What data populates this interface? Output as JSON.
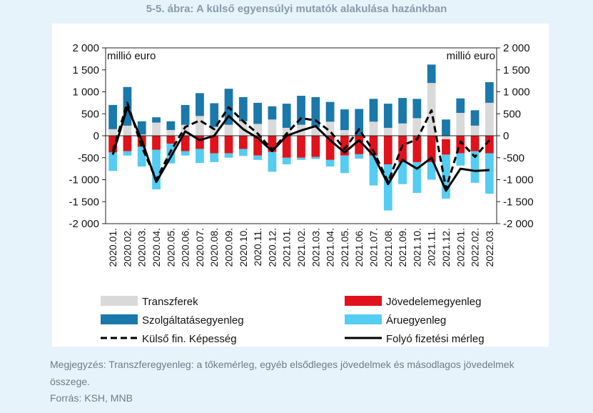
{
  "figure_title": "5-5. ábra: A külső egyensúlyi mutatók alakulása hazánkban",
  "note": "Megjegyzés: Transzferegyenleg: a tőkemérleg, egyéb elsődleges jövedelmek és másodlagos jövedelmek összege.",
  "source": "Forrás: KSH, MNB",
  "chart_data": {
    "type": "bar",
    "stacked": true,
    "title": "",
    "unit_left": "millió euro",
    "unit_right": "millió euro",
    "ylim": [
      -2000,
      2000
    ],
    "yticks": [
      2000,
      1500,
      1000,
      500,
      0,
      -500,
      -1000,
      -1500,
      -2000
    ],
    "ytick_labels": [
      "2 000",
      "1 500",
      "1 000",
      "500",
      "0",
      "-500",
      "-1 000",
      "-1 500",
      "-2 000"
    ],
    "grid": false,
    "legend_position": "bottom",
    "categories": [
      "2020.01.",
      "2020.02.",
      "2020.03.",
      "2020.04.",
      "2020.05.",
      "2020.06.",
      "2020.07.",
      "2020.08.",
      "2020.09.",
      "2020.10.",
      "2020.11.",
      "2020.12.",
      "2021.01.",
      "2021.02.",
      "2021.03.",
      "2021.04.",
      "2021.05.",
      "2021.06.",
      "2021.07.",
      "2021.08.",
      "2021.09.",
      "2021.10.",
      "2021.11.",
      "2021.12.",
      "2022.01.",
      "2022.02.",
      "2022.03."
    ],
    "series": [
      {
        "name": "Transzferek",
        "kind": "bar",
        "color": "#d9d9d9",
        "values": [
          150,
          230,
          30,
          300,
          130,
          250,
          450,
          200,
          250,
          330,
          270,
          370,
          180,
          250,
          190,
          320,
          130,
          0,
          320,
          180,
          280,
          400,
          1200,
          -80,
          520,
          230,
          750
        ]
      },
      {
        "name": "Jövedelemegyenleg",
        "kind": "bar",
        "color": "#e0121b",
        "values": [
          -380,
          -350,
          -250,
          -320,
          -180,
          -350,
          -300,
          -400,
          -400,
          -300,
          -450,
          -370,
          -500,
          -500,
          -480,
          -550,
          -450,
          -420,
          -450,
          -650,
          -600,
          -600,
          -600,
          -350,
          -400,
          -350,
          -400
        ]
      },
      {
        "name": "Szolgáltatásegyenleg",
        "kind": "bar",
        "color": "#1a78aa",
        "values": [
          550,
          880,
          300,
          120,
          200,
          450,
          520,
          540,
          820,
          550,
          480,
          300,
          550,
          660,
          690,
          450,
          470,
          610,
          520,
          550,
          580,
          440,
          420,
          370,
          330,
          350,
          470
        ]
      },
      {
        "name": "Áruegyenleg",
        "kind": "bar",
        "color": "#55ccf2",
        "values": [
          -420,
          -100,
          -450,
          -900,
          -450,
          -100,
          -320,
          -200,
          -100,
          -160,
          -100,
          -450,
          -150,
          -50,
          -50,
          -150,
          -400,
          -100,
          -680,
          -1050,
          -500,
          -700,
          -400,
          -1000,
          -280,
          -720,
          -920
        ]
      },
      {
        "name": "Külső fin. Képesség",
        "kind": "line",
        "dash": true,
        "color": "#000000",
        "values": [
          -350,
          750,
          -250,
          -1000,
          -350,
          200,
          350,
          150,
          650,
          330,
          50,
          -320,
          50,
          400,
          350,
          100,
          -300,
          150,
          -350,
          -1050,
          -220,
          -80,
          580,
          -1200,
          -130,
          -480,
          -100
        ]
      },
      {
        "name": "Folyó fizetési mérleg",
        "kind": "line",
        "dash": false,
        "color": "#000000",
        "values": [
          -430,
          650,
          -100,
          -1050,
          -480,
          100,
          -100,
          0,
          450,
          150,
          -50,
          -350,
          0,
          120,
          220,
          -100,
          -380,
          -100,
          -450,
          -1100,
          -550,
          -750,
          -500,
          -1250,
          -750,
          -800,
          -780
        ]
      }
    ]
  }
}
